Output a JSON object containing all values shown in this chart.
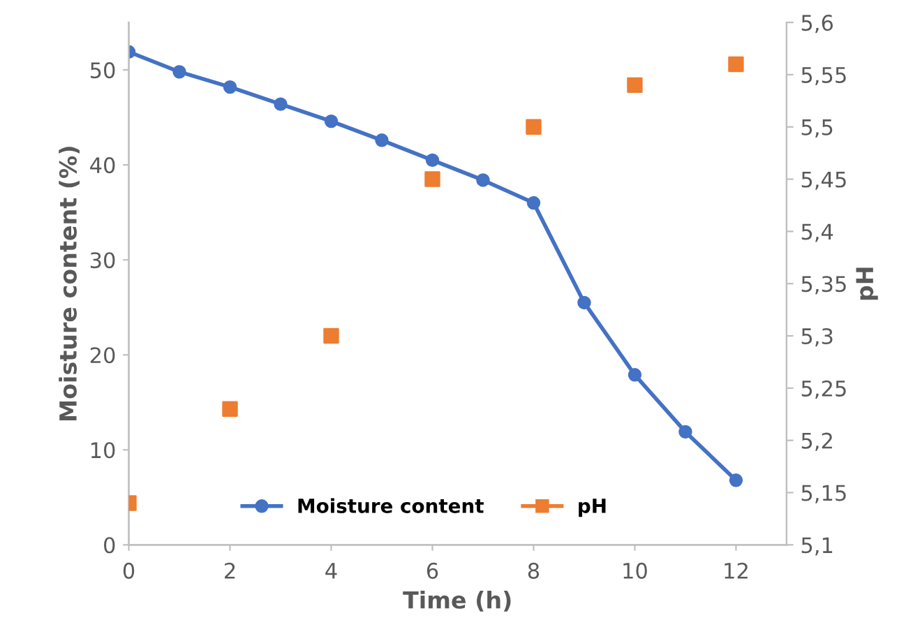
{
  "chart_data": {
    "type": "line",
    "xlabel": "Time (h)",
    "ylabel": "Moisture content (%)",
    "y2label": "pH",
    "xlim": [
      0,
      13
    ],
    "xticks": [
      0,
      2,
      4,
      6,
      8,
      10,
      12
    ],
    "ylim": [
      0,
      55
    ],
    "yticks": [
      0,
      10,
      20,
      30,
      40,
      50
    ],
    "y2lim": [
      5.1,
      5.6
    ],
    "y2ticks": [
      {
        "value": 5.1,
        "label": "5,1"
      },
      {
        "value": 5.15,
        "label": "5,15"
      },
      {
        "value": 5.2,
        "label": "5,2"
      },
      {
        "value": 5.25,
        "label": "5,25"
      },
      {
        "value": 5.3,
        "label": "5,3"
      },
      {
        "value": 5.35,
        "label": "5,35"
      },
      {
        "value": 5.4,
        "label": "5,4"
      },
      {
        "value": 5.45,
        "label": "5,45"
      },
      {
        "value": 5.5,
        "label": "5,5"
      },
      {
        "value": 5.55,
        "label": "5,55"
      },
      {
        "value": 5.6,
        "label": "5,6"
      }
    ],
    "grid": false,
    "legend": "bottom",
    "series": [
      {
        "name": "Moisture content",
        "type": "line",
        "marker": "circle",
        "color": "#4472c4",
        "x": [
          0,
          1,
          2,
          3,
          4,
          5,
          6,
          7,
          8,
          9,
          10,
          11,
          12
        ],
        "values": [
          51.9,
          49.8,
          48.2,
          46.4,
          44.6,
          42.6,
          40.5,
          38.4,
          36.0,
          25.5,
          17.9,
          11.9,
          6.8
        ]
      },
      {
        "name": "pH",
        "type": "scatter",
        "marker": "square",
        "axis": "y2",
        "color": "#ed7d31",
        "x": [
          0,
          2,
          4,
          6,
          8,
          10,
          12
        ],
        "values": [
          5.14,
          5.23,
          5.3,
          5.45,
          5.5,
          5.54,
          5.56
        ]
      }
    ]
  }
}
